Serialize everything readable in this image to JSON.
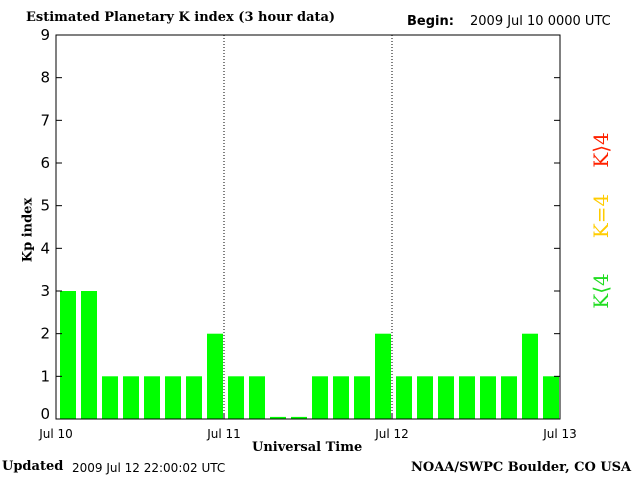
{
  "header": {
    "title": "Estimated Planetary K index (3 hour data)",
    "begin_label": "Begin:",
    "begin_value": "2009 Jul 10 0000 UTC"
  },
  "footer": {
    "updated_label": "Updated",
    "updated_value": "2009 Jul 12 22:00:02 UTC",
    "credit": "NOAA/SWPC Boulder, CO USA"
  },
  "legend": [
    {
      "label": "K⟩4",
      "color": "#ff2200"
    },
    {
      "label": "K=4",
      "color": "#ffcc00"
    },
    {
      "label": "K⟨4",
      "color": "#22dd22"
    }
  ],
  "chart_data": {
    "type": "bar",
    "title": "Estimated Planetary K index (3 hour data)",
    "xlabel": "Universal Time",
    "ylabel": "Kp index",
    "ylim": [
      0,
      9
    ],
    "yticks": [
      "0",
      "1",
      "2",
      "3",
      "4",
      "5",
      "6",
      "7",
      "8",
      "9"
    ],
    "xticks": [
      "Jul 10",
      "Jul 11",
      "Jul 12",
      "Jul 13"
    ],
    "day_separators": [
      "Jul 11",
      "Jul 12"
    ],
    "bar_color": "#00ff00",
    "series": [
      {
        "values": [
          3,
          3,
          1,
          1,
          1,
          1,
          1,
          2,
          1,
          1,
          0.05,
          0.05,
          1,
          1,
          1,
          2,
          1,
          1,
          1,
          1,
          1,
          1,
          2,
          1
        ]
      }
    ]
  }
}
